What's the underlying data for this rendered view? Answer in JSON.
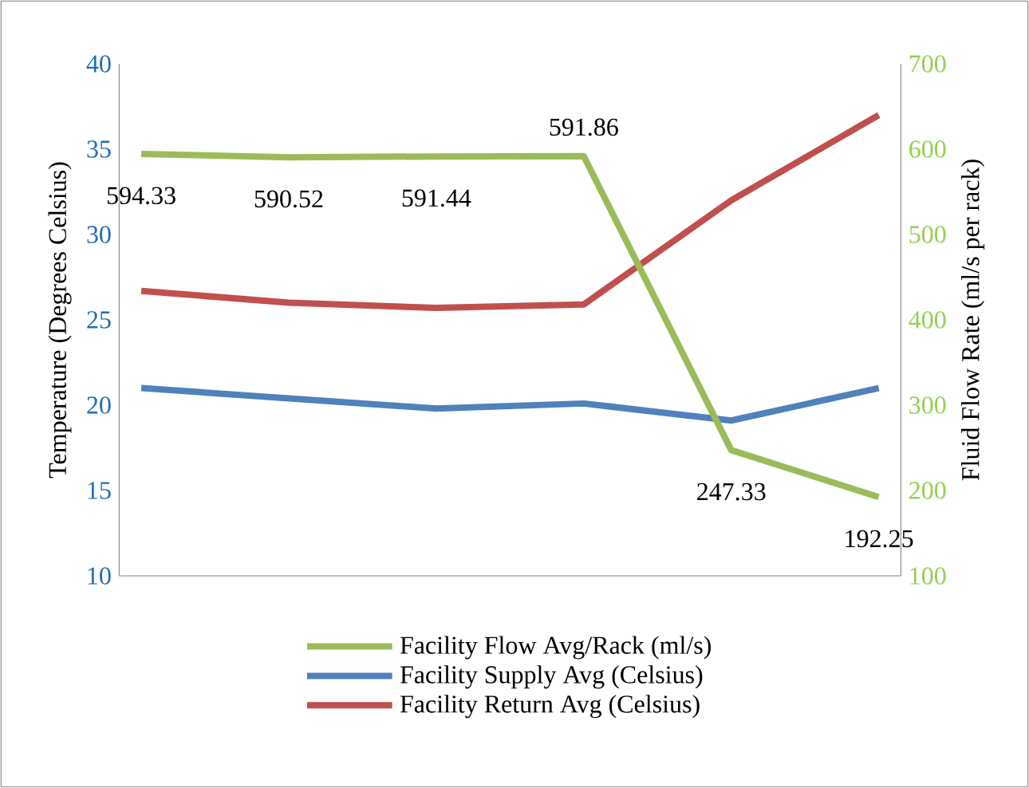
{
  "chart_data": {
    "type": "line",
    "ylabel": "Temperature (Degrees Celsius)",
    "y2label": "Fluid Flow Rate (ml/s per rack)",
    "categories": [
      null,
      null,
      null,
      null,
      null,
      null
    ],
    "ylim": [
      10,
      40
    ],
    "yticks": [
      10,
      15,
      20,
      25,
      30,
      35,
      40
    ],
    "y2lim": [
      100,
      700
    ],
    "y2ticks": [
      100,
      200,
      300,
      400,
      500,
      600,
      700
    ],
    "series": [
      {
        "name": "Facility Flow Avg/Rack (ml/s)",
        "color": "#9bbb59",
        "axis": "y2",
        "values": [
          594.33,
          590.52,
          591.44,
          591.86,
          247.33,
          192.25
        ],
        "value_labels": [
          "594.33",
          "590.52",
          "591.44",
          "591.86",
          "247.33",
          "192.25"
        ]
      },
      {
        "name": "Facility Supply Avg (Celsius)",
        "color": "#4f81bd",
        "values": [
          21.0,
          20.4,
          19.8,
          20.1,
          19.1,
          21.0
        ]
      },
      {
        "name": "Facility Return Avg (Celsius)",
        "color": "#c0504d",
        "values": [
          26.7,
          26.0,
          25.7,
          25.9,
          32.0,
          37.0
        ]
      }
    ],
    "legend": "bottom",
    "grid": false,
    "marker": "none",
    "line_style": "solid"
  }
}
